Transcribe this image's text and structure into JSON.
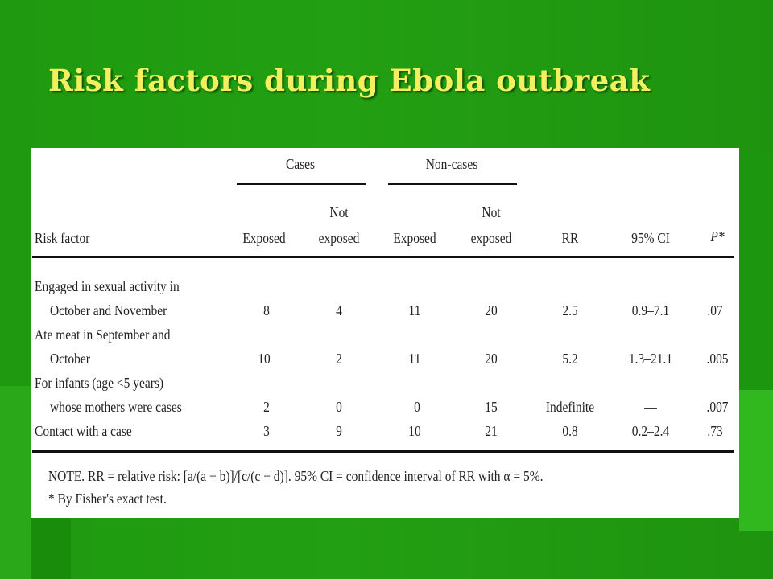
{
  "slide": {
    "title": "Risk factors during Ebola outbreak"
  },
  "table": {
    "group_headers": {
      "cases": "Cases",
      "noncases": "Non-cases"
    },
    "column_headers": {
      "risk_factor": "Risk factor",
      "cases_exposed": "Exposed",
      "cases_not_line1": "Not",
      "cases_not_line2": "exposed",
      "non_exposed": "Exposed",
      "non_not_line1": "Not",
      "non_not_line2": "exposed",
      "rr": "RR",
      "ci": "95% CI",
      "p": "P*"
    },
    "rows": [
      {
        "label_line1": "Engaged in sexual activity in",
        "label_line2": "October and November",
        "cases_exposed": "8",
        "cases_not_exposed": "4",
        "noncases_exposed": "11",
        "noncases_not_exposed": "20",
        "rr": "2.5",
        "ci": "0.9–7.1",
        "p": ".07"
      },
      {
        "label_line1": "Ate meat in September and",
        "label_line2": "October",
        "cases_exposed": "10",
        "cases_not_exposed": "2",
        "noncases_exposed": "11",
        "noncases_not_exposed": "20",
        "rr": "5.2",
        "ci": "1.3–21.1",
        "p": ".005"
      },
      {
        "label_line1": "For infants (age <5 years)",
        "label_line2": "whose mothers were cases",
        "cases_exposed": "2",
        "cases_not_exposed": "0",
        "noncases_exposed": "0",
        "noncases_not_exposed": "15",
        "rr": "Indefinite",
        "ci": "—",
        "p": ".007"
      },
      {
        "label_line1": "",
        "label_line2": "Contact with a case",
        "cases_exposed": "3",
        "cases_not_exposed": "9",
        "noncases_exposed": "10",
        "noncases_not_exposed": "21",
        "rr": "0.8",
        "ci": "0.2–2.4",
        "p": ".73"
      }
    ],
    "note_line1": "NOTE.   RR = relative risk: [a/(a + b)]/[c/(c + d)]. 95% CI = confidence interval of RR with α = 5%.",
    "note_line2": "* By Fisher's exact test."
  }
}
